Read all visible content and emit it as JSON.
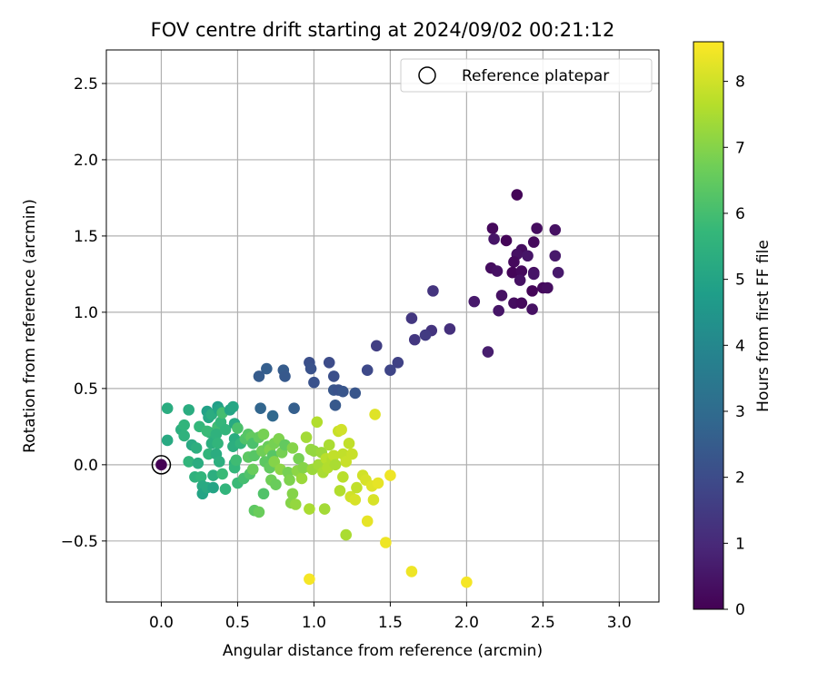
{
  "chart_data": {
    "type": "scatter",
    "title": "FOV centre drift starting at 2024/09/02 00:21:12",
    "xlabel": "Angular distance from reference (arcmin)",
    "ylabel": "Rotation from reference (arcmin)",
    "xlim": [
      -0.36,
      3.26
    ],
    "ylim": [
      -0.9,
      2.72
    ],
    "xticks": [
      0.0,
      0.5,
      1.0,
      1.5,
      2.0,
      2.5,
      3.0
    ],
    "xtick_labels": [
      "0.0",
      "0.5",
      "1.0",
      "1.5",
      "2.0",
      "2.5",
      "3.0"
    ],
    "yticks": [
      -0.5,
      0.0,
      0.5,
      1.0,
      1.5,
      2.0,
      2.5
    ],
    "ytick_labels": [
      "−0.5",
      "0.0",
      "0.5",
      "1.0",
      "1.5",
      "2.0",
      "2.5"
    ],
    "grid": true,
    "legend": {
      "position": "top-right",
      "entries": [
        "Reference platepar"
      ]
    },
    "reference_point": {
      "x": 0.0,
      "y": 0.0
    },
    "colorbar": {
      "label": "Hours from first FF file",
      "colormap": "viridis",
      "range": [
        0,
        8.6
      ],
      "ticks": [
        0,
        1,
        2,
        3,
        4,
        5,
        6,
        7,
        8
      ],
      "tick_labels": [
        "0",
        "1",
        "2",
        "3",
        "4",
        "5",
        "6",
        "7",
        "8"
      ]
    },
    "points": [
      {
        "x": 2.33,
        "y": 1.77,
        "h": 0.1
      },
      {
        "x": 2.17,
        "y": 1.55,
        "h": 0.2
      },
      {
        "x": 2.46,
        "y": 1.55,
        "h": 0.3
      },
      {
        "x": 2.58,
        "y": 1.54,
        "h": 0.4
      },
      {
        "x": 2.18,
        "y": 1.48,
        "h": 0.5
      },
      {
        "x": 2.26,
        "y": 1.47,
        "h": 0.1
      },
      {
        "x": 2.44,
        "y": 1.46,
        "h": 0.2
      },
      {
        "x": 2.36,
        "y": 1.41,
        "h": 0.3
      },
      {
        "x": 2.33,
        "y": 1.38,
        "h": 0.4
      },
      {
        "x": 2.4,
        "y": 1.37,
        "h": 0.5
      },
      {
        "x": 2.58,
        "y": 1.37,
        "h": 0.6
      },
      {
        "x": 2.31,
        "y": 1.33,
        "h": 0.2
      },
      {
        "x": 2.16,
        "y": 1.29,
        "h": 0.3
      },
      {
        "x": 2.2,
        "y": 1.27,
        "h": 0.4
      },
      {
        "x": 2.3,
        "y": 1.26,
        "h": 0.1
      },
      {
        "x": 2.36,
        "y": 1.27,
        "h": 0.2
      },
      {
        "x": 2.44,
        "y": 1.26,
        "h": 0.3
      },
      {
        "x": 2.44,
        "y": 1.25,
        "h": 0.5
      },
      {
        "x": 2.6,
        "y": 1.26,
        "h": 0.6
      },
      {
        "x": 2.35,
        "y": 1.21,
        "h": 0.4
      },
      {
        "x": 2.5,
        "y": 1.16,
        "h": 0.2
      },
      {
        "x": 2.53,
        "y": 1.16,
        "h": 0.3
      },
      {
        "x": 2.43,
        "y": 1.14,
        "h": 0.1
      },
      {
        "x": 2.23,
        "y": 1.11,
        "h": 0.4
      },
      {
        "x": 2.05,
        "y": 1.07,
        "h": 0.6
      },
      {
        "x": 2.31,
        "y": 1.06,
        "h": 0.3
      },
      {
        "x": 2.36,
        "y": 1.06,
        "h": 0.2
      },
      {
        "x": 2.21,
        "y": 1.01,
        "h": 0.5
      },
      {
        "x": 2.43,
        "y": 1.02,
        "h": 0.4
      },
      {
        "x": 2.14,
        "y": 0.74,
        "h": 0.7
      },
      {
        "x": 1.78,
        "y": 1.14,
        "h": 1.3
      },
      {
        "x": 1.64,
        "y": 0.96,
        "h": 1.4
      },
      {
        "x": 1.89,
        "y": 0.89,
        "h": 1.2
      },
      {
        "x": 1.77,
        "y": 0.88,
        "h": 1.3
      },
      {
        "x": 1.73,
        "y": 0.85,
        "h": 1.5
      },
      {
        "x": 1.66,
        "y": 0.82,
        "h": 1.4
      },
      {
        "x": 1.41,
        "y": 0.78,
        "h": 1.6
      },
      {
        "x": 1.55,
        "y": 0.67,
        "h": 1.7
      },
      {
        "x": 1.5,
        "y": 0.62,
        "h": 1.8
      },
      {
        "x": 1.35,
        "y": 0.62,
        "h": 1.9
      },
      {
        "x": 1.1,
        "y": 0.67,
        "h": 2.0
      },
      {
        "x": 0.97,
        "y": 0.67,
        "h": 2.1
      },
      {
        "x": 0.98,
        "y": 0.63,
        "h": 2.2
      },
      {
        "x": 0.8,
        "y": 0.62,
        "h": 2.5
      },
      {
        "x": 0.69,
        "y": 0.63,
        "h": 2.6
      },
      {
        "x": 0.64,
        "y": 0.58,
        "h": 2.5
      },
      {
        "x": 0.81,
        "y": 0.58,
        "h": 2.4
      },
      {
        "x": 1.13,
        "y": 0.58,
        "h": 2.1
      },
      {
        "x": 1.0,
        "y": 0.54,
        "h": 2.2
      },
      {
        "x": 1.13,
        "y": 0.49,
        "h": 2.3
      },
      {
        "x": 1.16,
        "y": 0.49,
        "h": 2.2
      },
      {
        "x": 1.19,
        "y": 0.48,
        "h": 2.3
      },
      {
        "x": 1.27,
        "y": 0.47,
        "h": 2.3
      },
      {
        "x": 1.14,
        "y": 0.39,
        "h": 2.4
      },
      {
        "x": 0.65,
        "y": 0.37,
        "h": 2.8
      },
      {
        "x": 0.87,
        "y": 0.37,
        "h": 2.6
      },
      {
        "x": 0.73,
        "y": 0.32,
        "h": 2.9
      },
      {
        "x": 0.0,
        "y": 0.0,
        "h": 0.0
      },
      {
        "x": 0.04,
        "y": 0.16,
        "h": 5.2
      },
      {
        "x": 0.04,
        "y": 0.37,
        "h": 5.3
      },
      {
        "x": 0.13,
        "y": 0.23,
        "h": 5.4
      },
      {
        "x": 0.15,
        "y": 0.26,
        "h": 5.6
      },
      {
        "x": 0.18,
        "y": 0.36,
        "h": 5.3
      },
      {
        "x": 0.15,
        "y": 0.19,
        "h": 5.5
      },
      {
        "x": 0.2,
        "y": 0.13,
        "h": 5.2
      },
      {
        "x": 0.18,
        "y": 0.02,
        "h": 5.6
      },
      {
        "x": 0.23,
        "y": 0.11,
        "h": 5.4
      },
      {
        "x": 0.25,
        "y": 0.25,
        "h": 5.7
      },
      {
        "x": 0.24,
        "y": 0.01,
        "h": 5.3
      },
      {
        "x": 0.22,
        "y": -0.08,
        "h": 5.5
      },
      {
        "x": 0.26,
        "y": -0.08,
        "h": 5.6
      },
      {
        "x": 0.27,
        "y": -0.14,
        "h": 5.2
      },
      {
        "x": 0.27,
        "y": -0.19,
        "h": 5.0
      },
      {
        "x": 0.3,
        "y": 0.35,
        "h": 4.9
      },
      {
        "x": 0.31,
        "y": 0.31,
        "h": 5.1
      },
      {
        "x": 0.33,
        "y": 0.33,
        "h": 5.3
      },
      {
        "x": 0.32,
        "y": 0.21,
        "h": 5.5
      },
      {
        "x": 0.33,
        "y": 0.14,
        "h": 5.4
      },
      {
        "x": 0.31,
        "y": 0.07,
        "h": 5.6
      },
      {
        "x": 0.3,
        "y": 0.22,
        "h": 5.8
      },
      {
        "x": 0.3,
        "y": -0.15,
        "h": 5.2
      },
      {
        "x": 0.34,
        "y": -0.07,
        "h": 5.4
      },
      {
        "x": 0.34,
        "y": -0.15,
        "h": 5.0
      },
      {
        "x": 0.37,
        "y": 0.38,
        "h": 4.8
      },
      {
        "x": 0.38,
        "y": 0.36,
        "h": 5.0
      },
      {
        "x": 0.37,
        "y": 0.25,
        "h": 5.9
      },
      {
        "x": 0.39,
        "y": 0.28,
        "h": 5.7
      },
      {
        "x": 0.36,
        "y": 0.2,
        "h": 5.5
      },
      {
        "x": 0.37,
        "y": 0.14,
        "h": 5.6
      },
      {
        "x": 0.36,
        "y": 0.07,
        "h": 5.3
      },
      {
        "x": 0.38,
        "y": 0.02,
        "h": 5.4
      },
      {
        "x": 0.4,
        "y": -0.06,
        "h": 5.8
      },
      {
        "x": 0.4,
        "y": 0.34,
        "h": 6.0
      },
      {
        "x": 0.42,
        "y": 0.23,
        "h": 5.6
      },
      {
        "x": 0.42,
        "y": -0.16,
        "h": 5.6
      },
      {
        "x": 0.45,
        "y": 0.36,
        "h": 5.0
      },
      {
        "x": 0.47,
        "y": 0.38,
        "h": 5.1
      },
      {
        "x": 0.48,
        "y": 0.27,
        "h": 5.2
      },
      {
        "x": 0.48,
        "y": 0.17,
        "h": 5.3
      },
      {
        "x": 0.47,
        "y": 0.12,
        "h": 5.4
      },
      {
        "x": 0.48,
        "y": 0.01,
        "h": 5.5
      },
      {
        "x": 0.48,
        "y": -0.02,
        "h": 5.7
      },
      {
        "x": 0.49,
        "y": 0.03,
        "h": 5.9
      },
      {
        "x": 0.5,
        "y": -0.12,
        "h": 5.8
      },
      {
        "x": 0.5,
        "y": 0.24,
        "h": 6.1
      },
      {
        "x": 0.52,
        "y": 0.14,
        "h": 5.6
      },
      {
        "x": 0.54,
        "y": -0.09,
        "h": 6.0
      },
      {
        "x": 0.55,
        "y": 0.17,
        "h": 6.2
      },
      {
        "x": 0.57,
        "y": 0.2,
        "h": 6.3
      },
      {
        "x": 0.57,
        "y": 0.05,
        "h": 6.4
      },
      {
        "x": 0.58,
        "y": -0.06,
        "h": 6.2
      },
      {
        "x": 0.59,
        "y": 0.18,
        "h": 6.5
      },
      {
        "x": 0.6,
        "y": 0.14,
        "h": 6.1
      },
      {
        "x": 0.6,
        "y": -0.03,
        "h": 6.6
      },
      {
        "x": 0.61,
        "y": 0.06,
        "h": 6.3
      },
      {
        "x": 0.61,
        "y": -0.3,
        "h": 6.4
      },
      {
        "x": 0.64,
        "y": -0.31,
        "h": 6.6
      },
      {
        "x": 0.64,
        "y": 0.18,
        "h": 6.5
      },
      {
        "x": 0.66,
        "y": 0.09,
        "h": 6.7
      },
      {
        "x": 0.67,
        "y": 0.2,
        "h": 6.8
      },
      {
        "x": 0.67,
        "y": -0.19,
        "h": 6.2
      },
      {
        "x": 0.68,
        "y": 0.02,
        "h": 6.4
      },
      {
        "x": 0.7,
        "y": 0.12,
        "h": 6.6
      },
      {
        "x": 0.71,
        "y": 0.1,
        "h": 6.9
      },
      {
        "x": 0.71,
        "y": -0.02,
        "h": 6.5
      },
      {
        "x": 0.72,
        "y": -0.1,
        "h": 6.7
      },
      {
        "x": 0.73,
        "y": 0.06,
        "h": 6.3
      },
      {
        "x": 0.74,
        "y": 0.14,
        "h": 6.8
      },
      {
        "x": 0.74,
        "y": 0.02,
        "h": 7.0
      },
      {
        "x": 0.75,
        "y": -0.13,
        "h": 6.6
      },
      {
        "x": 0.77,
        "y": 0.17,
        "h": 6.9
      },
      {
        "x": 0.78,
        "y": -0.03,
        "h": 7.1
      },
      {
        "x": 0.79,
        "y": 0.08,
        "h": 6.8
      },
      {
        "x": 0.81,
        "y": 0.13,
        "h": 6.5
      },
      {
        "x": 0.83,
        "y": -0.05,
        "h": 6.8
      },
      {
        "x": 0.84,
        "y": -0.1,
        "h": 6.9
      },
      {
        "x": 0.85,
        "y": -0.25,
        "h": 7.0
      },
      {
        "x": 0.86,
        "y": -0.19,
        "h": 7.0
      },
      {
        "x": 0.86,
        "y": 0.11,
        "h": 7.0
      },
      {
        "x": 0.88,
        "y": -0.26,
        "h": 7.2
      },
      {
        "x": 0.89,
        "y": -0.04,
        "h": 7.1
      },
      {
        "x": 0.9,
        "y": 0.04,
        "h": 6.8
      },
      {
        "x": 0.92,
        "y": -0.09,
        "h": 7.3
      },
      {
        "x": 0.93,
        "y": -0.02,
        "h": 7.0
      },
      {
        "x": 0.95,
        "y": 0.18,
        "h": 7.4
      },
      {
        "x": 0.97,
        "y": -0.29,
        "h": 7.5
      },
      {
        "x": 0.98,
        "y": 0.1,
        "h": 7.2
      },
      {
        "x": 0.99,
        "y": -0.03,
        "h": 7.3
      },
      {
        "x": 1.0,
        "y": 0.09,
        "h": 7.2
      },
      {
        "x": 1.02,
        "y": 0.28,
        "h": 7.6
      },
      {
        "x": 1.03,
        "y": 0.0,
        "h": 7.4
      },
      {
        "x": 1.05,
        "y": 0.08,
        "h": 7.3
      },
      {
        "x": 1.06,
        "y": -0.05,
        "h": 7.5
      },
      {
        "x": 1.07,
        "y": -0.29,
        "h": 7.4
      },
      {
        "x": 1.08,
        "y": 0.04,
        "h": 7.7
      },
      {
        "x": 1.09,
        "y": -0.02,
        "h": 7.6
      },
      {
        "x": 1.1,
        "y": 0.13,
        "h": 7.5
      },
      {
        "x": 1.12,
        "y": 0.03,
        "h": 7.6
      },
      {
        "x": 1.13,
        "y": 0.06,
        "h": 7.8
      },
      {
        "x": 1.14,
        "y": 0.0,
        "h": 7.5
      },
      {
        "x": 1.16,
        "y": 0.22,
        "h": 7.9
      },
      {
        "x": 1.17,
        "y": -0.17,
        "h": 7.6
      },
      {
        "x": 1.18,
        "y": 0.23,
        "h": 8.0
      },
      {
        "x": 1.19,
        "y": 0.07,
        "h": 7.8
      },
      {
        "x": 1.19,
        "y": -0.08,
        "h": 7.7
      },
      {
        "x": 1.21,
        "y": 0.02,
        "h": 7.9
      },
      {
        "x": 1.21,
        "y": -0.46,
        "h": 7.5
      },
      {
        "x": 1.23,
        "y": 0.14,
        "h": 7.8
      },
      {
        "x": 1.24,
        "y": -0.21,
        "h": 8.0
      },
      {
        "x": 1.25,
        "y": 0.07,
        "h": 7.9
      },
      {
        "x": 1.27,
        "y": -0.23,
        "h": 8.1
      },
      {
        "x": 1.28,
        "y": -0.15,
        "h": 7.8
      },
      {
        "x": 1.32,
        "y": -0.07,
        "h": 8.0
      },
      {
        "x": 1.34,
        "y": -0.1,
        "h": 8.1
      },
      {
        "x": 1.35,
        "y": -0.37,
        "h": 8.3
      },
      {
        "x": 1.38,
        "y": -0.14,
        "h": 8.2
      },
      {
        "x": 1.39,
        "y": -0.23,
        "h": 8.1
      },
      {
        "x": 1.4,
        "y": 0.33,
        "h": 8.2
      },
      {
        "x": 1.42,
        "y": -0.12,
        "h": 8.3
      },
      {
        "x": 1.47,
        "y": -0.51,
        "h": 8.4
      },
      {
        "x": 1.5,
        "y": -0.07,
        "h": 8.4
      },
      {
        "x": 0.97,
        "y": -0.75,
        "h": 8.5
      },
      {
        "x": 1.64,
        "y": -0.7,
        "h": 8.4
      },
      {
        "x": 2.0,
        "y": -0.77,
        "h": 8.5
      }
    ]
  }
}
